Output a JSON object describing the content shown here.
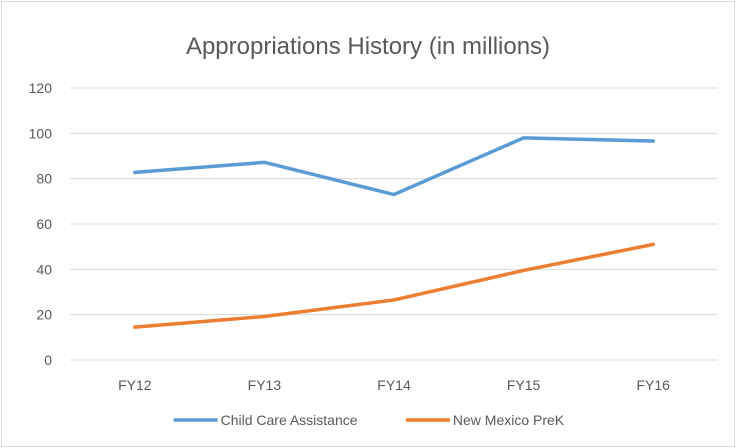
{
  "chart_data": {
    "type": "line",
    "title": "Appropriations History (in millions)",
    "categories": [
      "FY12",
      "FY13",
      "FY14",
      "FY15",
      "FY16"
    ],
    "ylim": [
      0,
      120
    ],
    "yticks": [
      0,
      20,
      40,
      60,
      80,
      100,
      120
    ],
    "grid": true,
    "legend_position": "bottom",
    "series": [
      {
        "name": "Child Care Assistance",
        "color": "#5b9bd5",
        "values": [
          82.8,
          87.2,
          73.0,
          98.0,
          96.6
        ]
      },
      {
        "name": "New Mexico PreK",
        "color": "#ed7d31",
        "values": [
          14.5,
          19.2,
          26.5,
          39.5,
          51.0
        ]
      }
    ]
  }
}
